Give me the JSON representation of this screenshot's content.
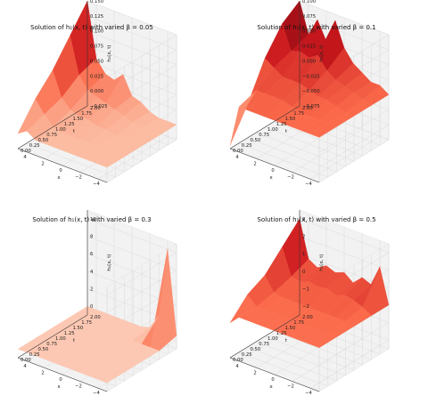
{
  "chart_data": [
    {
      "type": "surface3d",
      "title": "Solution of h₁(x, t) with varied β = 0.05",
      "xlabel": "x",
      "ylabel": "t",
      "zlabel": "h₁(x, t)",
      "x_ticks": [
        "−4",
        "−2",
        "0",
        "2",
        "4"
      ],
      "t_ticks": [
        "0.00",
        "0.25",
        "0.50",
        "0.75",
        "1.00",
        "1.25",
        "1.50",
        "1.75",
        "2.00"
      ],
      "z_ticks": [
        "−0.025",
        "0.000",
        "0.025",
        "0.050",
        "0.075",
        "0.100",
        "0.125",
        "0.150"
      ],
      "xlim": [
        -5,
        5
      ],
      "tlim": [
        0,
        2
      ],
      "zlim": [
        -0.025,
        0.15
      ],
      "colormap": "Reds",
      "surface": {
        "x": [
          -5,
          -4,
          -3,
          -2,
          -1,
          0,
          1,
          2,
          3,
          4,
          5
        ],
        "t": [
          0,
          0.5,
          1,
          1.5,
          2
        ],
        "z": [
          [
            0.0,
            0.0,
            0.0,
            0.0,
            0.0,
            0.0,
            0.0,
            0.0,
            0.0,
            0.01,
            0.0
          ],
          [
            0.0,
            0.0,
            0.0,
            0.0,
            0.0,
            0.0,
            0.0,
            0.0,
            0.005,
            0.02,
            0.04
          ],
          [
            0.0,
            0.0,
            0.0,
            0.0,
            0.005,
            0.005,
            0.01,
            0.01,
            0.015,
            0.03,
            0.07
          ],
          [
            0.0,
            0.0,
            0.0,
            0.005,
            0.01,
            0.015,
            0.02,
            0.025,
            0.03,
            0.05,
            0.11
          ],
          [
            0.0,
            0.0,
            0.0,
            0.005,
            0.015,
            0.02,
            0.05,
            0.035,
            0.04,
            0.06,
            0.15
          ]
        ]
      }
    },
    {
      "type": "surface3d",
      "title": "Solution of h₁(x, t) with varied β = 0.1",
      "xlabel": "x",
      "ylabel": "t",
      "zlabel": "h₁(x, t)",
      "x_ticks": [
        "−4",
        "−2",
        "0",
        "2",
        "4"
      ],
      "t_ticks": [
        "0.00",
        "0.25",
        "0.50",
        "0.75",
        "1.00",
        "1.25",
        "1.50",
        "1.75",
        "2.00"
      ],
      "z_ticks": [
        "−0.075",
        "−0.050",
        "−0.025",
        "0.000",
        "0.025",
        "0.050",
        "0.075",
        "0.100"
      ],
      "xlim": [
        -5,
        5
      ],
      "tlim": [
        0,
        2
      ],
      "zlim": [
        -0.075,
        0.1
      ],
      "colormap": "Reds",
      "surface": {
        "x": [
          -5,
          -4,
          -3,
          -2,
          -1,
          0,
          1,
          2,
          3,
          4,
          5
        ],
        "t": [
          0,
          0.5,
          1,
          1.5,
          2
        ],
        "z": [
          [
            0.0,
            0.0,
            0.0,
            0.0,
            0.0,
            0.0,
            0.0,
            0.0,
            0.0,
            0.0,
            -0.07
          ],
          [
            0.0,
            0.0,
            0.0,
            0.0,
            0.0,
            0.005,
            0.01,
            0.01,
            0.01,
            0.01,
            -0.02
          ],
          [
            0.0,
            0.0,
            0.005,
            0.01,
            0.01,
            0.015,
            0.02,
            0.02,
            0.02,
            0.03,
            0.04
          ],
          [
            0.0,
            0.005,
            0.01,
            0.015,
            0.02,
            0.03,
            0.05,
            0.04,
            0.045,
            0.04,
            0.08
          ],
          [
            0.0,
            0.01,
            0.01,
            0.02,
            0.03,
            0.05,
            0.09,
            0.05,
            0.08,
            0.05,
            0.1
          ]
        ]
      }
    },
    {
      "type": "surface3d",
      "title": "Solution of h₁(x, t) with varied β = 0.3",
      "xlabel": "x",
      "ylabel": "t",
      "zlabel": "h₁(x, t)",
      "x_ticks": [
        "−4",
        "−2",
        "0",
        "2",
        "4"
      ],
      "t_ticks": [
        "0.00",
        "0.25",
        "0.50",
        "0.75",
        "1.00",
        "1.25",
        "1.50",
        "1.75",
        "2.00"
      ],
      "z_ticks": [
        "0",
        "2",
        "4",
        "6",
        "8",
        "10"
      ],
      "xlim": [
        -5,
        5
      ],
      "tlim": [
        0,
        2
      ],
      "zlim": [
        -1,
        11
      ],
      "colormap": "Reds",
      "surface": {
        "x": [
          -5,
          -4,
          -3,
          -2,
          -1,
          0,
          1,
          2,
          3,
          4,
          5
        ],
        "t": [
          0,
          0.5,
          1,
          1.5,
          2
        ],
        "z": [
          [
            0.0,
            0.0,
            0.0,
            0.0,
            0.0,
            0.0,
            0.0,
            0.0,
            0.0,
            0.0,
            0.0
          ],
          [
            0.0,
            0.0,
            0.0,
            0.0,
            0.0,
            0.0,
            0.0,
            0.0,
            0.0,
            0.0,
            0.0
          ],
          [
            0.0,
            0.0,
            0.0,
            0.0,
            0.0,
            0.0,
            0.0,
            0.0,
            0.0,
            0.0,
            0.0
          ],
          [
            0.0,
            0.0,
            0.0,
            0.0,
            0.0,
            0.0,
            0.0,
            0.0,
            0.0,
            0.0,
            0.0
          ],
          [
            0.5,
            10.0,
            2.0,
            0.3,
            0.0,
            0.0,
            0.0,
            0.0,
            0.0,
            0.0,
            0.0
          ]
        ]
      }
    },
    {
      "type": "surface3d",
      "title": "Solution of h₁(x, t) with varied β = 0.5",
      "xlabel": "x",
      "ylabel": "t",
      "zlabel": "h₁(x, t)",
      "x_ticks": [
        "−4",
        "−2",
        "0",
        "2",
        "4"
      ],
      "t_ticks": [
        "0.00",
        "0.25",
        "0.50",
        "0.75",
        "1.00",
        "1.25",
        "1.50",
        "1.75",
        "2.00"
      ],
      "z_ticks": [
        "−2",
        "−1",
        "0",
        "1",
        "2",
        "3"
      ],
      "xlim": [
        -5,
        5
      ],
      "tlim": [
        0,
        2
      ],
      "zlim": [
        -2.5,
        3.5
      ],
      "colormap": "Reds",
      "surface": {
        "x": [
          -5,
          -4,
          -3,
          -2,
          -1,
          0,
          1,
          2,
          3,
          4,
          5
        ],
        "t": [
          0,
          0.5,
          1,
          1.5,
          2
        ],
        "z": [
          [
            0.0,
            0.0,
            0.0,
            0.0,
            0.0,
            0.0,
            0.0,
            0.0,
            0.0,
            0.0,
            -0.5
          ],
          [
            0.0,
            0.0,
            0.0,
            0.0,
            0.0,
            0.0,
            0.0,
            0.0,
            0.0,
            0.0,
            0.5
          ],
          [
            0.0,
            0.1,
            0.1,
            0.1,
            0.1,
            0.1,
            0.1,
            0.1,
            0.1,
            0.2,
            1.0
          ],
          [
            0.0,
            0.3,
            0.5,
            0.6,
            0.4,
            0.6,
            0.5,
            0.6,
            0.4,
            0.5,
            2.0
          ],
          [
            0.0,
            2.0,
            0.8,
            1.0,
            0.5,
            0.9,
            0.7,
            0.9,
            0.6,
            0.9,
            3.0
          ]
        ]
      }
    }
  ]
}
